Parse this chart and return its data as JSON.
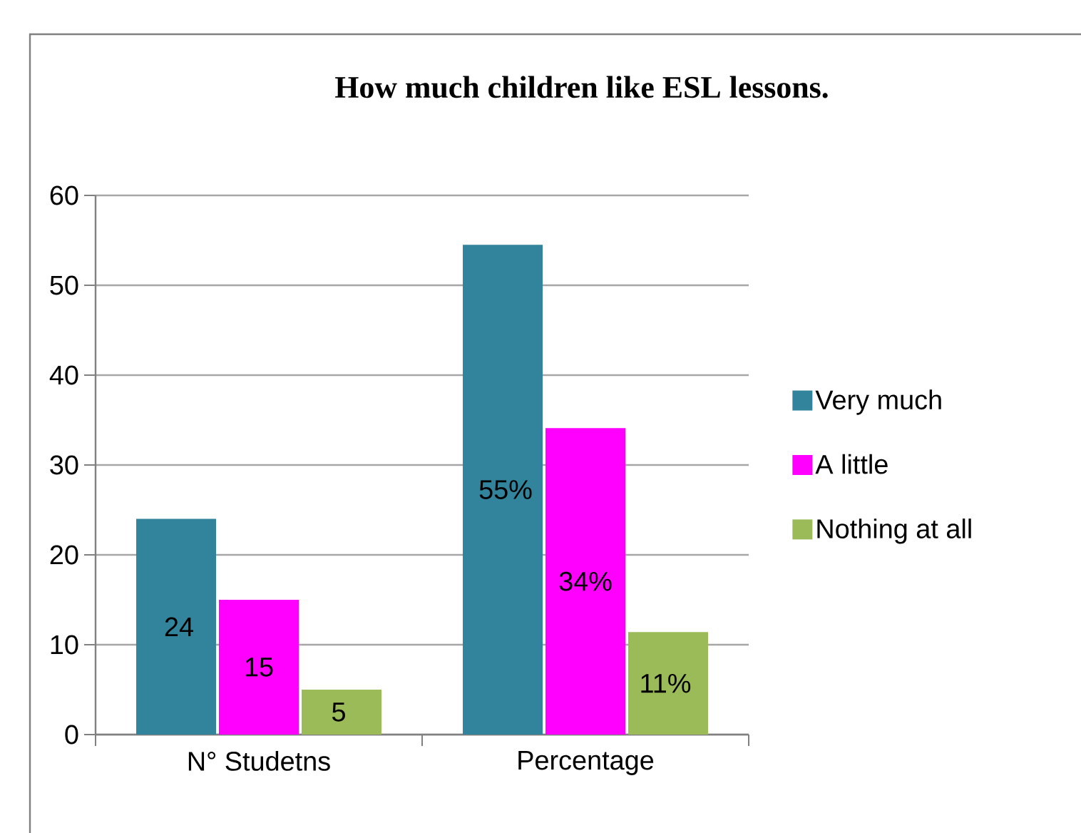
{
  "chart_data": {
    "type": "bar",
    "title": "How much children like ESL lessons.",
    "categories": [
      "N° Studetns",
      "Percentage"
    ],
    "series": [
      {
        "name": "Very much",
        "color": "#31849b",
        "values": [
          24,
          54.5
        ],
        "value_labels": [
          "24",
          "55%"
        ]
      },
      {
        "name": "A little",
        "color": "#ff00ff",
        "values": [
          15,
          34.1
        ],
        "value_labels": [
          "15",
          "34%"
        ]
      },
      {
        "name": "Nothing at all",
        "color": "#9bbb59",
        "values": [
          5,
          11.4
        ],
        "value_labels": [
          "5",
          "11%"
        ]
      }
    ],
    "ylim": [
      0,
      60
    ],
    "yticks": [
      0,
      10,
      20,
      30,
      40,
      50,
      60
    ],
    "grid": "y",
    "legend": "right"
  }
}
